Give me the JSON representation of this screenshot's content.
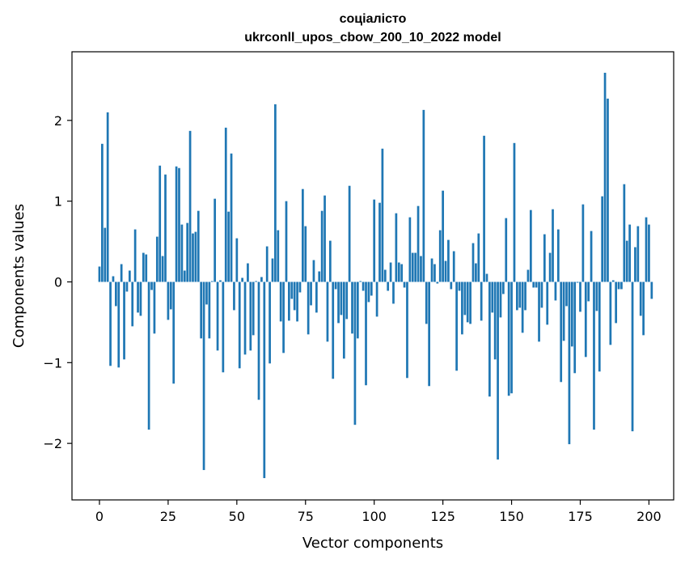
{
  "chart_data": {
    "type": "bar",
    "title": "соціалісто",
    "subtitle": "ukrconll_upos_cbow_200_10_2022 model",
    "xlabel": "Vector components",
    "ylabel": "Components values",
    "xlim": [
      -10,
      209
    ],
    "ylim": [
      -2.7,
      2.85
    ],
    "xticks": [
      0,
      25,
      50,
      75,
      100,
      125,
      150,
      175,
      200
    ],
    "yticks": [
      -2,
      -1,
      0,
      1,
      2
    ],
    "color": "#1f77b4",
    "grid": false,
    "legend": "none",
    "x_start": 0,
    "values": [
      0.19,
      1.71,
      0.67,
      2.1,
      -1.04,
      0.07,
      -0.3,
      -1.06,
      0.22,
      -0.96,
      -0.12,
      0.14,
      -0.55,
      0.65,
      -0.38,
      -0.42,
      0.36,
      0.34,
      -1.83,
      -0.1,
      -0.64,
      0.56,
      1.44,
      0.32,
      1.33,
      -0.47,
      -0.34,
      -1.26,
      1.43,
      1.41,
      0.71,
      0.14,
      0.73,
      1.87,
      0.6,
      0.62,
      0.88,
      -0.7,
      -2.33,
      -0.28,
      -0.7,
      0.01,
      1.03,
      -0.85,
      0.02,
      -1.12,
      1.91,
      0.87,
      1.59,
      -0.35,
      0.54,
      -1.07,
      0.05,
      -0.9,
      0.23,
      -0.85,
      -0.66,
      0.01,
      -1.46,
      0.06,
      -2.43,
      0.44,
      -1.01,
      0.29,
      2.2,
      0.64,
      -0.49,
      -0.88,
      1.0,
      -0.48,
      -0.21,
      -0.35,
      -0.49,
      -0.13,
      1.15,
      0.69,
      -0.65,
      -0.29,
      0.27,
      -0.38,
      0.13,
      0.88,
      1.07,
      -0.74,
      0.51,
      -1.2,
      -0.09,
      -0.51,
      -0.41,
      -0.95,
      -0.46,
      1.19,
      -0.64,
      -1.77,
      -0.7,
      0.01,
      -0.11,
      -1.28,
      -0.25,
      -0.17,
      1.02,
      -0.43,
      0.98,
      1.65,
      0.15,
      -0.11,
      0.24,
      -0.27,
      0.85,
      0.24,
      0.22,
      -0.07,
      -1.19,
      0.8,
      0.36,
      0.36,
      0.94,
      0.32,
      2.13,
      -0.52,
      -1.29,
      0.29,
      0.22,
      -0.02,
      0.64,
      1.13,
      0.26,
      0.52,
      -0.09,
      0.38,
      -1.1,
      -0.11,
      -0.65,
      -0.41,
      -0.5,
      -0.52,
      0.48,
      0.23,
      0.6,
      -0.48,
      1.81,
      0.1,
      -1.42,
      -0.38,
      -0.96,
      -2.2,
      -0.44,
      -0.15,
      0.79,
      -1.41,
      -1.38,
      1.72,
      -0.35,
      -0.32,
      -0.63,
      -0.35,
      0.15,
      0.89,
      -0.07,
      -0.07,
      -0.74,
      -0.32,
      0.59,
      -0.53,
      0.36,
      0.9,
      -0.23,
      0.65,
      -1.24,
      -0.73,
      -0.3,
      -2.01,
      -0.8,
      -1.13,
      -0.01,
      -0.37,
      0.96,
      -0.93,
      -0.24,
      0.63,
      -1.83,
      -0.36,
      -1.11,
      1.06,
      2.59,
      2.27,
      -0.78,
      0.02,
      -0.51,
      -0.09,
      -0.09,
      1.21,
      0.51,
      0.71,
      -1.85,
      0.43,
      0.69,
      -0.42,
      -0.66,
      0.8,
      0.71,
      -0.21
    ]
  }
}
